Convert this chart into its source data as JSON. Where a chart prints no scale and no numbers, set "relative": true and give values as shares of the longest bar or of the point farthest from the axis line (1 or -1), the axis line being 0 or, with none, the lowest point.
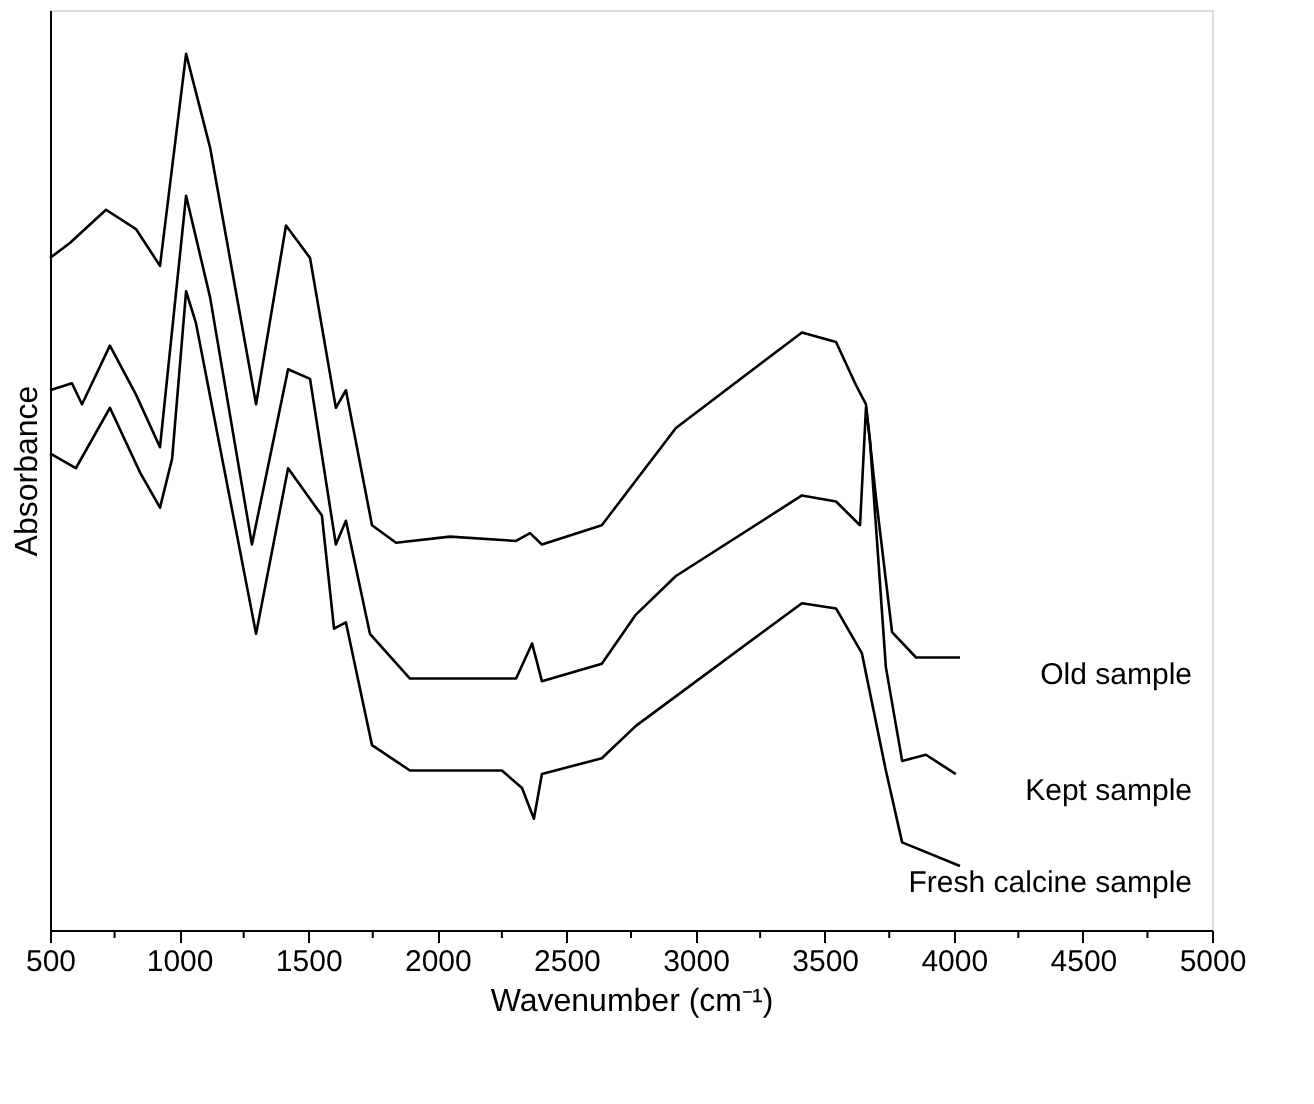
{
  "chart_data": {
    "type": "line",
    "relative": true,
    "xlabel": "Wavenumber (cm⁻¹)",
    "ylabel": "Absorbance",
    "xlim": [
      500,
      5000
    ],
    "xticks": [
      500,
      {
        "value": 750,
        "label": null
      },
      1000,
      {
        "value": 1250,
        "label": null
      },
      1500,
      {
        "value": 1750,
        "label": null
      },
      2000,
      {
        "value": 2250,
        "label": null
      },
      2500,
      {
        "value": 2750,
        "label": null
      },
      3000,
      {
        "value": 3250,
        "label": null
      },
      3500,
      {
        "value": 3750,
        "label": null
      },
      4000,
      {
        "value": 4250,
        "label": null
      },
      4500,
      {
        "value": 4750,
        "label": null
      },
      5000
    ],
    "grid": false,
    "legend": false,
    "marker": "none",
    "line_style": "solid",
    "series": [
      {
        "name": "Old sample",
        "color": "#000000",
        "x": [
          500,
          577,
          717,
          833,
          926,
          1027,
          1120,
          1298,
          1414,
          1507,
          1607,
          1646,
          1747,
          1840,
          2049,
          2305,
          2359,
          2405,
          2637,
          2924,
          3412,
          3544,
          3621,
          3660,
          3699,
          3761,
          3854,
          4024
        ],
        "values": [
          0.767,
          0.784,
          0.822,
          0.8,
          0.758,
          1.0,
          0.893,
          0.6,
          0.804,
          0.767,
          0.596,
          0.616,
          0.462,
          0.442,
          0.449,
          0.444,
          0.453,
          0.44,
          0.462,
          0.573,
          0.682,
          0.671,
          0.622,
          0.6,
          0.493,
          0.34,
          0.311,
          0.311
        ]
      },
      {
        "name": "Kept sample",
        "color": "#000000",
        "x": [
          500,
          585,
          624,
          732,
          833,
          926,
          1027,
          1120,
          1282,
          1422,
          1507,
          1607,
          1646,
          1739,
          1894,
          2305,
          2367,
          2405,
          2637,
          2769,
          2924,
          3412,
          3544,
          3637,
          3660,
          3675,
          3737,
          3800,
          3892,
          4008
        ],
        "values": [
          0.616,
          0.624,
          0.6,
          0.667,
          0.611,
          0.551,
          0.838,
          0.722,
          0.44,
          0.64,
          0.629,
          0.44,
          0.467,
          0.338,
          0.287,
          0.287,
          0.327,
          0.284,
          0.304,
          0.36,
          0.404,
          0.496,
          0.489,
          0.462,
          0.596,
          0.56,
          0.3,
          0.193,
          0.2,
          0.178
        ]
      },
      {
        "name": "Fresh calcine sample",
        "color": "#000000",
        "x": [
          500,
          600,
          732,
          849,
          926,
          973,
          1027,
          1065,
          1298,
          1422,
          1553,
          1600,
          1646,
          1747,
          1894,
          2250,
          2328,
          2374,
          2405,
          2637,
          2769,
          3412,
          3544,
          3644,
          3737,
          3800,
          4024
        ],
        "values": [
          0.544,
          0.527,
          0.596,
          0.522,
          0.482,
          0.538,
          0.729,
          0.693,
          0.338,
          0.527,
          0.473,
          0.344,
          0.351,
          0.211,
          0.182,
          0.182,
          0.162,
          0.127,
          0.178,
          0.196,
          0.233,
          0.373,
          0.367,
          0.316,
          0.182,
          0.1,
          0.073
        ]
      }
    ]
  }
}
